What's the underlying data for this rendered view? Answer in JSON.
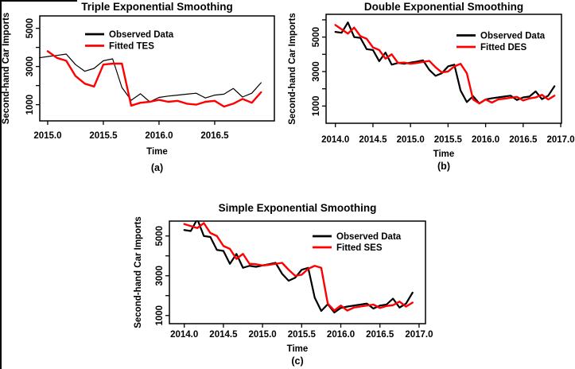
{
  "figure": {
    "background": "#ffffff",
    "observed_color": "#000000",
    "fitted_color": "#ff0000"
  },
  "chart_data": [
    {
      "id": "a",
      "type": "line",
      "title": "Triple Exponential Smoothing",
      "xlabel": "Time",
      "ylabel": "Second-hand Car Imports",
      "caption": "(a)",
      "grid": false,
      "legend_position": "top-center-inside",
      "xlim": [
        2014.929,
        2017.036
      ],
      "ylim": [
        150,
        5650
      ],
      "x_tick_values": [
        2015.0,
        2015.5,
        2016.0,
        2016.5
      ],
      "x_tick_labels": [
        "2015.0",
        "2015.5",
        "2016.0",
        "2016.5"
      ],
      "y_tick_values": [
        1000,
        2000,
        3000,
        4000,
        5000
      ],
      "y_tick_labeled": [
        1000,
        3000,
        5000
      ],
      "y_tick_labels": [
        "1000",
        "3000",
        "5000"
      ],
      "legend": [
        {
          "label": "Observed Data",
          "color": "#000000"
        },
        {
          "label": "Fitted TES",
          "color": "#ff0000"
        }
      ],
      "series": [
        {
          "name": "Observed Data",
          "color": "#000000",
          "line_width": 1.2,
          "start": 2014.8333,
          "step_years": 0.0833333,
          "values": [
            3500,
            3450,
            3520,
            3580,
            3650,
            3100,
            2750,
            2900,
            3300,
            3400,
            1900,
            1230,
            1570,
            1150,
            1380,
            1450,
            1500,
            1550,
            1600,
            1350,
            1500,
            1550,
            1850,
            1400,
            1600,
            2150
          ]
        },
        {
          "name": "Fitted TES",
          "color": "#ff0000",
          "line_width": 2.4,
          "start": 2015.0,
          "step_years": 0.0833333,
          "values": [
            3800,
            3450,
            3300,
            2500,
            2100,
            1950,
            3100,
            3150,
            3150,
            950,
            1100,
            1150,
            1250,
            1150,
            1200,
            1050,
            1000,
            1150,
            1200,
            900,
            1050,
            1300,
            1100,
            1650
          ]
        }
      ]
    },
    {
      "id": "b",
      "type": "line",
      "title": "Double Exponential Smoothing",
      "xlabel": "Time",
      "ylabel": "Second-hand Car Imports",
      "caption": "(b)",
      "grid": false,
      "legend_position": "top-right-inside",
      "xlim": [
        2013.876,
        2017.01
      ],
      "ylim": [
        0,
        6320
      ],
      "x_tick_values": [
        2014.0,
        2014.5,
        2015.0,
        2015.5,
        2016.0,
        2016.5,
        2017.0
      ],
      "x_tick_labels": [
        "2014.0",
        "2014.5",
        "2015.0",
        "2015.5",
        "2016.0",
        "2016.5",
        "2017.0"
      ],
      "y_tick_values": [
        1000,
        2000,
        3000,
        4000,
        5000,
        6000
      ],
      "y_tick_labeled": [
        1000,
        3000,
        5000
      ],
      "y_tick_labels": [
        "1000",
        "3000",
        "5000"
      ],
      "legend": [
        {
          "label": "Observed Data",
          "color": "#000000"
        },
        {
          "label": "Fitted DES",
          "color": "#ff0000"
        }
      ],
      "series": [
        {
          "name": "Observed Data",
          "color": "#000000",
          "line_width": 2.2,
          "start": 2014.0,
          "step_years": 0.0833333,
          "values": [
            5300,
            5250,
            5850,
            5000,
            4950,
            4300,
            4250,
            3600,
            4100,
            3400,
            3500,
            3450,
            3520,
            3580,
            3650,
            3100,
            2750,
            2900,
            3300,
            3400,
            1900,
            1230,
            1570,
            1150,
            1380,
            1450,
            1500,
            1550,
            1600,
            1350,
            1500,
            1550,
            1850,
            1400,
            1600,
            2150
          ]
        },
        {
          "name": "Fitted DES",
          "color": "#ff0000",
          "line_width": 2.4,
          "start": 2014.0,
          "step_years": 0.0833333,
          "values": [
            5700,
            5450,
            5200,
            5550,
            5050,
            4900,
            4400,
            4250,
            3750,
            4000,
            3500,
            3520,
            3450,
            3500,
            3560,
            3620,
            3250,
            2950,
            3000,
            3300,
            3450,
            2900,
            1380,
            1150,
            1380,
            1200,
            1380,
            1430,
            1480,
            1530,
            1320,
            1440,
            1500,
            1650,
            1380,
            1600
          ]
        }
      ]
    },
    {
      "id": "c",
      "type": "line",
      "title": "Simple Exponential Smoothing",
      "xlabel": "Time",
      "ylabel": "Second-hand Car Imports",
      "caption": "(c)",
      "grid": false,
      "legend_position": "top-right-inside",
      "xlim": [
        2013.81,
        2017.082
      ],
      "ylim": [
        590,
        5750
      ],
      "x_tick_values": [
        2014.0,
        2014.5,
        2015.0,
        2015.5,
        2016.0,
        2016.5,
        2017.0
      ],
      "x_tick_labels": [
        "2014.0",
        "2014.5",
        "2015.0",
        "2015.5",
        "2016.0",
        "2016.5",
        "2017.0"
      ],
      "y_tick_values": [
        1000,
        2000,
        3000,
        4000,
        5000
      ],
      "y_tick_labeled": [
        1000,
        3000,
        5000
      ],
      "y_tick_labels": [
        "1000",
        "3000",
        "5000"
      ],
      "legend": [
        {
          "label": "Observed Data",
          "color": "#000000"
        },
        {
          "label": "Fitted SES",
          "color": "#ff0000"
        }
      ],
      "series": [
        {
          "name": "Observed Data",
          "color": "#000000",
          "line_width": 2.2,
          "start": 2014.0,
          "step_years": 0.0833333,
          "values": [
            5300,
            5250,
            5850,
            5000,
            4950,
            4300,
            4250,
            3600,
            4100,
            3400,
            3500,
            3450,
            3520,
            3580,
            3650,
            3100,
            2750,
            2900,
            3300,
            3400,
            1900,
            1230,
            1570,
            1150,
            1380,
            1450,
            1500,
            1550,
            1600,
            1350,
            1500,
            1550,
            1850,
            1400,
            1600,
            2150
          ]
        },
        {
          "name": "Fitted SES",
          "color": "#ff0000",
          "line_width": 2.4,
          "start": 2014.0,
          "step_years": 0.0833333,
          "values": [
            5600,
            5500,
            5400,
            5650,
            5150,
            5000,
            4500,
            4350,
            3850,
            4100,
            3600,
            3580,
            3520,
            3550,
            3600,
            3650,
            3300,
            3000,
            3050,
            3350,
            3500,
            3400,
            1600,
            1250,
            1500,
            1250,
            1400,
            1450,
            1500,
            1550,
            1380,
            1480,
            1520,
            1700,
            1450,
            1650
          ]
        }
      ]
    }
  ]
}
